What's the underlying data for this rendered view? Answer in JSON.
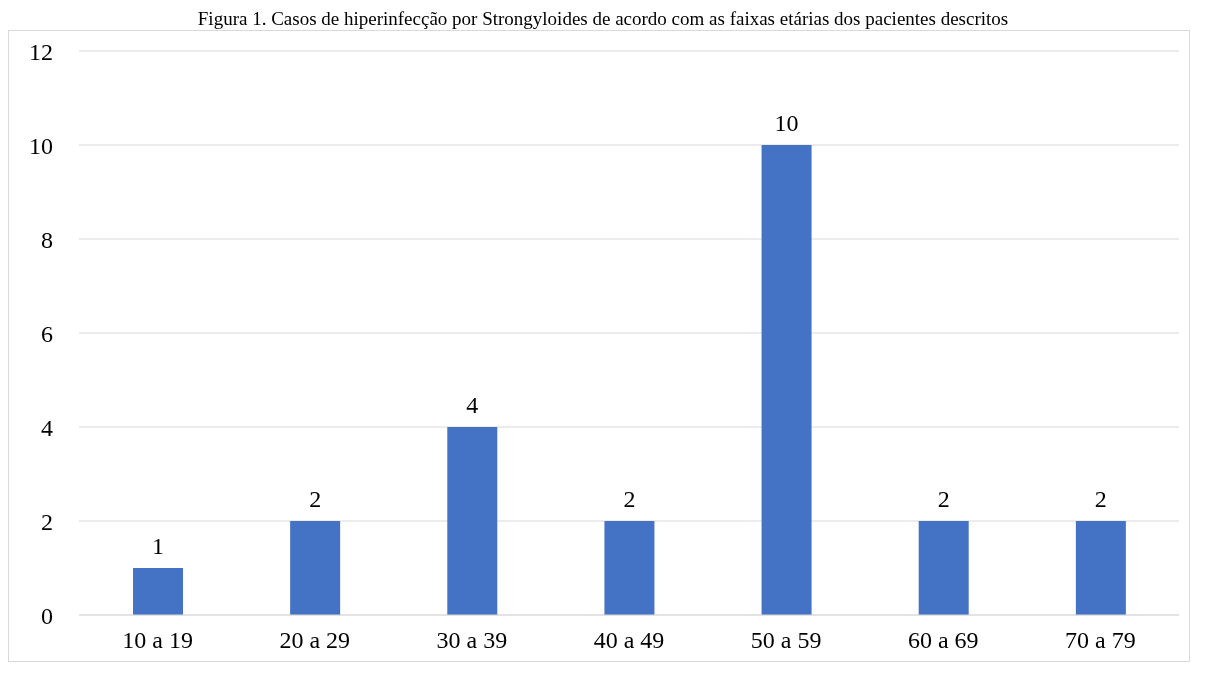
{
  "chart_data": {
    "type": "bar",
    "title": "Figura 1. Casos de hiperinfecção por Strongyloides de acordo com as faixas etárias dos pacientes descritos",
    "categories": [
      "10 a 19",
      "20 a 29",
      "30 a 39",
      "40 a 49",
      "50 a 59",
      "60 a 69",
      "70 a 79"
    ],
    "values": [
      1,
      2,
      4,
      2,
      10,
      2,
      2
    ],
    "color": "#4472c4",
    "ylim": [
      0,
      12
    ],
    "yticks": [
      0,
      2,
      4,
      6,
      8,
      10,
      12
    ],
    "grid": "y",
    "data_labels": true
  }
}
